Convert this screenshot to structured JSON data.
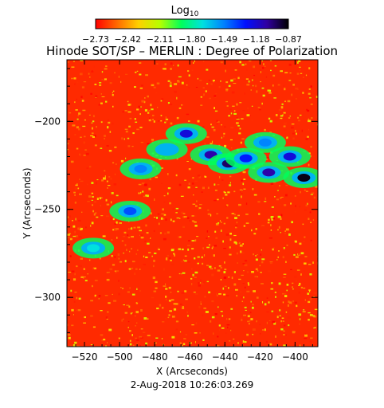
{
  "colorbar": {
    "label": "Log",
    "label_sub": "10",
    "ticks": [
      "−2.73",
      "−2.42",
      "−2.11",
      "−1.80",
      "−1.49",
      "−1.18",
      "−0.87"
    ],
    "range": [
      -2.73,
      -0.87
    ],
    "colors": [
      "#ff0000",
      "#ff6a00",
      "#ffd000",
      "#b6ff00",
      "#00ff5a",
      "#00e0e0",
      "#0080ff",
      "#0010ff",
      "#3000a0",
      "#000000"
    ]
  },
  "chart_data": {
    "type": "heatmap",
    "title": "Hinode SOT/SP – MERLIN : Degree of Polarization",
    "xlabel": "X (Arcseconds)",
    "ylabel": "Y (Arcseconds)",
    "xlim": [
      -530,
      -387
    ],
    "ylim": [
      -328,
      -165
    ],
    "x_ticks": [
      -520,
      -500,
      -480,
      -460,
      -440,
      -420,
      -400
    ],
    "x_tick_labels": [
      "−520",
      "−500",
      "−480",
      "−460",
      "−440",
      "−420",
      "−400"
    ],
    "y_ticks": [
      -200,
      -250,
      -300
    ],
    "y_tick_labels": [
      "−200",
      "−250",
      "−300"
    ],
    "value_scale": "log10",
    "value_range": [
      -2.73,
      -0.87
    ],
    "features": [
      {
        "x": -462,
        "y": -207,
        "value": -1.2
      },
      {
        "x": -448,
        "y": -219,
        "value": -1.1
      },
      {
        "x": -438,
        "y": -224,
        "value": -1.0
      },
      {
        "x": -428,
        "y": -221,
        "value": -1.3
      },
      {
        "x": -415,
        "y": -229,
        "value": -1.1
      },
      {
        "x": -403,
        "y": -220,
        "value": -1.2
      },
      {
        "x": -395,
        "y": -232,
        "value": -0.9
      },
      {
        "x": -494,
        "y": -251,
        "value": -1.4
      },
      {
        "x": -488,
        "y": -227,
        "value": -1.5
      },
      {
        "x": -473,
        "y": -216,
        "value": -1.6
      },
      {
        "x": -417,
        "y": -212,
        "value": -1.5
      },
      {
        "x": -515,
        "y": -272,
        "value": -1.7
      }
    ]
  },
  "footer": {
    "timestamp": "2-Aug-2018 10:26:03.269"
  }
}
